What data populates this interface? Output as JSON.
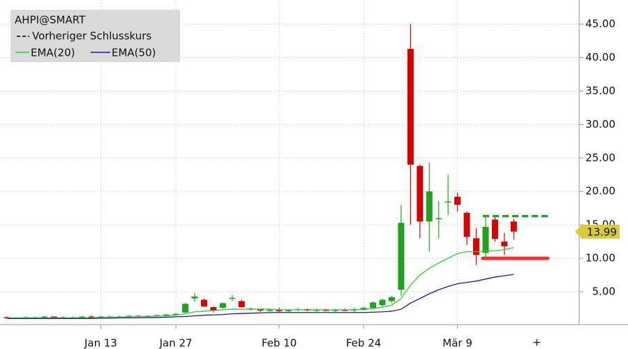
{
  "chart_data": {
    "type": "candlestick",
    "title": "AHPI@SMART",
    "reference_label": "Vorheriger Schlusskurs",
    "categories": [
      null,
      null,
      null,
      null,
      null,
      null,
      null,
      null,
      null,
      null,
      "Jan 13",
      null,
      null,
      null,
      null,
      null,
      null,
      null,
      "Jan 27",
      null,
      null,
      null,
      null,
      null,
      null,
      null,
      null,
      null,
      null,
      "Feb 10",
      null,
      null,
      null,
      null,
      null,
      null,
      null,
      null,
      "Feb 24",
      null,
      null,
      null,
      null,
      null,
      null,
      null,
      null,
      null,
      "Mär 9",
      null,
      null,
      null,
      null,
      null,
      null,
      null,
      null,
      null,
      null,
      null,
      null
    ],
    "open": [
      1.2,
      1.1,
      1.1,
      1.2,
      1.2,
      1.3,
      1.2,
      1.1,
      1.2,
      1.3,
      1.2,
      1.3,
      1.2,
      1.3,
      1.4,
      1.3,
      1.4,
      1.5,
      1.6,
      1.9,
      4.0,
      3.8,
      2.7,
      2.6,
      4.0,
      3.6,
      2.5,
      2.4,
      2.2,
      2.3,
      2.1,
      2.3,
      2.4,
      2.2,
      2.3,
      2.2,
      2.3,
      2.2,
      2.3,
      2.6,
      3.0,
      3.6,
      5.3,
      41.3,
      23.8,
      15.5,
      16.0,
      18.4,
      19.2,
      16.8,
      13.0,
      10.8,
      15.8,
      12.5,
      15.5,
      null,
      null,
      null,
      null,
      null,
      null
    ],
    "high": [
      1.3,
      1.2,
      1.3,
      1.3,
      1.4,
      1.3,
      1.3,
      1.3,
      1.4,
      1.5,
      1.4,
      1.4,
      1.4,
      1.5,
      1.5,
      1.5,
      1.6,
      1.7,
      1.8,
      3.3,
      4.8,
      4.0,
      2.8,
      3.4,
      4.5,
      3.8,
      2.6,
      2.5,
      2.5,
      2.6,
      2.4,
      2.6,
      2.5,
      2.5,
      2.5,
      2.4,
      2.5,
      2.6,
      2.8,
      3.6,
      4.0,
      4.4,
      18.0,
      45.0,
      24.0,
      24.3,
      18.5,
      22.5,
      19.8,
      17.0,
      14.5,
      16.2,
      16.3,
      13.8,
      15.9,
      null,
      null,
      null,
      null,
      null,
      null
    ],
    "low": [
      1.0,
      1.0,
      1.0,
      1.1,
      1.1,
      1.1,
      1.1,
      1.0,
      1.1,
      1.2,
      1.1,
      1.2,
      1.1,
      1.2,
      1.2,
      1.2,
      1.3,
      1.3,
      1.4,
      1.8,
      3.5,
      2.7,
      1.9,
      2.5,
      3.6,
      2.6,
      2.2,
      2.0,
      2.0,
      2.0,
      1.9,
      2.1,
      2.1,
      2.0,
      2.1,
      2.0,
      2.1,
      2.0,
      2.2,
      2.4,
      2.8,
      3.4,
      4.4,
      15.0,
      13.0,
      11.0,
      13.0,
      16.5,
      17.0,
      12.0,
      9.0,
      10.2,
      12.5,
      10.5,
      12.8,
      null,
      null,
      null,
      null,
      null,
      null
    ],
    "close": [
      1.1,
      1.1,
      1.2,
      1.2,
      1.3,
      1.2,
      1.1,
      1.2,
      1.3,
      1.2,
      1.3,
      1.2,
      1.3,
      1.4,
      1.3,
      1.4,
      1.5,
      1.6,
      1.7,
      3.2,
      4.3,
      2.8,
      2.2,
      3.3,
      4.1,
      2.7,
      2.4,
      2.2,
      2.3,
      2.1,
      2.3,
      2.4,
      2.2,
      2.3,
      2.2,
      2.3,
      2.2,
      2.4,
      2.6,
      3.4,
      3.8,
      4.2,
      15.3,
      24.0,
      15.5,
      20.0,
      16.0,
      18.5,
      18.0,
      13.2,
      10.5,
      14.7,
      12.9,
      11.8,
      14.0,
      null,
      null,
      null,
      null,
      null,
      null
    ],
    "up_color": "#22a022",
    "down_color": "#d40000",
    "series": [
      {
        "name": "EMA(20)",
        "color": "#33cc33",
        "values": [
          1.1,
          1.1,
          1.1,
          1.1,
          1.1,
          1.1,
          1.1,
          1.1,
          1.1,
          1.1,
          1.15,
          1.2,
          1.2,
          1.25,
          1.3,
          1.3,
          1.35,
          1.4,
          1.5,
          1.7,
          2.0,
          2.1,
          2.2,
          2.3,
          2.4,
          2.4,
          2.4,
          2.4,
          2.4,
          2.3,
          2.3,
          2.3,
          2.3,
          2.3,
          2.3,
          2.3,
          2.3,
          2.3,
          2.4,
          2.5,
          2.7,
          3.0,
          4.0,
          6.0,
          7.5,
          8.5,
          9.3,
          10.0,
          10.7,
          11.0,
          11.0,
          11.1,
          11.1,
          11.3,
          11.6,
          null,
          null,
          null,
          null,
          null,
          null
        ]
      },
      {
        "name": "EMA(50)",
        "color": "#1a1aaa",
        "values": [
          1.0,
          1.0,
          1.0,
          1.0,
          1.0,
          1.0,
          1.0,
          1.0,
          1.0,
          1.0,
          1.05,
          1.05,
          1.1,
          1.1,
          1.1,
          1.15,
          1.15,
          1.2,
          1.25,
          1.3,
          1.4,
          1.5,
          1.55,
          1.6,
          1.7,
          1.75,
          1.8,
          1.85,
          1.9,
          1.9,
          1.9,
          1.9,
          1.9,
          1.9,
          1.9,
          1.9,
          1.9,
          1.9,
          1.9,
          1.95,
          2.0,
          2.1,
          2.4,
          3.3,
          4.0,
          4.7,
          5.3,
          5.8,
          6.2,
          6.4,
          6.6,
          6.9,
          7.2,
          7.4,
          7.6,
          null,
          null,
          null,
          null,
          null,
          null
        ]
      }
    ],
    "hlines": [
      {
        "value": 16.3,
        "color": "#2ca02c",
        "dash": true
      },
      {
        "value": 10.0,
        "color": "#ee3333",
        "dash": false
      }
    ],
    "last_price": 13.99,
    "ylim": [
      0.1,
      48.6
    ],
    "yticks": [
      {
        "value": 5,
        "label": "5.00"
      },
      {
        "value": 10,
        "label": "10.00"
      },
      {
        "value": 15,
        "label": "15.00"
      },
      {
        "value": 20,
        "label": "20.00"
      },
      {
        "value": 25,
        "label": "25.00"
      },
      {
        "value": 30,
        "label": "30.00"
      },
      {
        "value": 35,
        "label": "35.00"
      },
      {
        "value": 40,
        "label": "40.00"
      },
      {
        "value": 45,
        "label": "45.00"
      }
    ],
    "grid": true
  }
}
